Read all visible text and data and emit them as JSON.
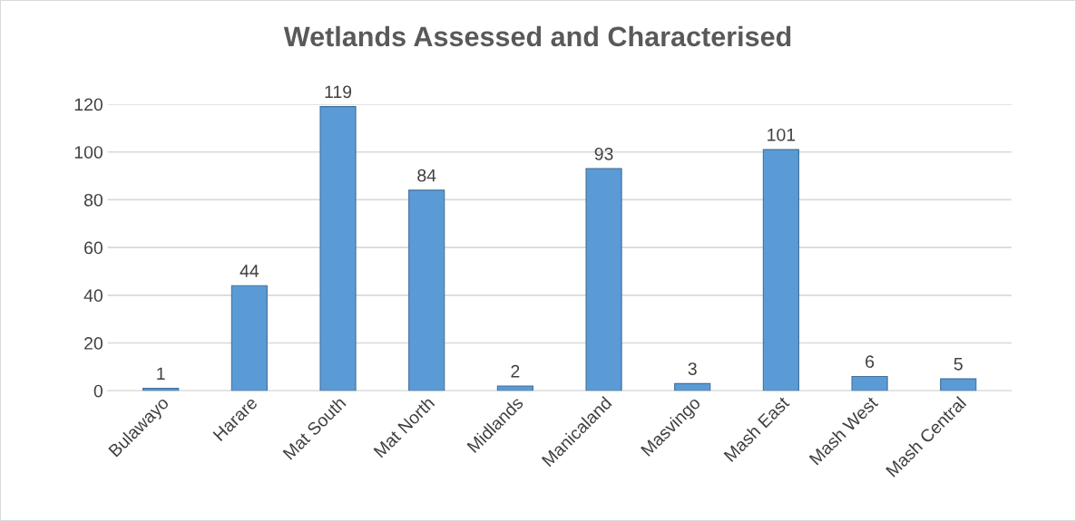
{
  "chart_data": {
    "type": "bar",
    "title": "Wetlands Assessed and Characterised",
    "categories": [
      "Bulawayo",
      "Harare",
      "Mat South",
      "Mat North",
      "Midlands",
      "Manicaland",
      "Masvingo",
      "Mash East",
      "Mash West",
      "Mash Central"
    ],
    "values": [
      1,
      44,
      119,
      84,
      2,
      93,
      3,
      101,
      6,
      5
    ],
    "color": "#5b9bd5",
    "ylim": [
      0,
      120
    ],
    "yticks": [
      0,
      20,
      40,
      60,
      80,
      100,
      120
    ],
    "grid": "y",
    "data_labels": true
  }
}
